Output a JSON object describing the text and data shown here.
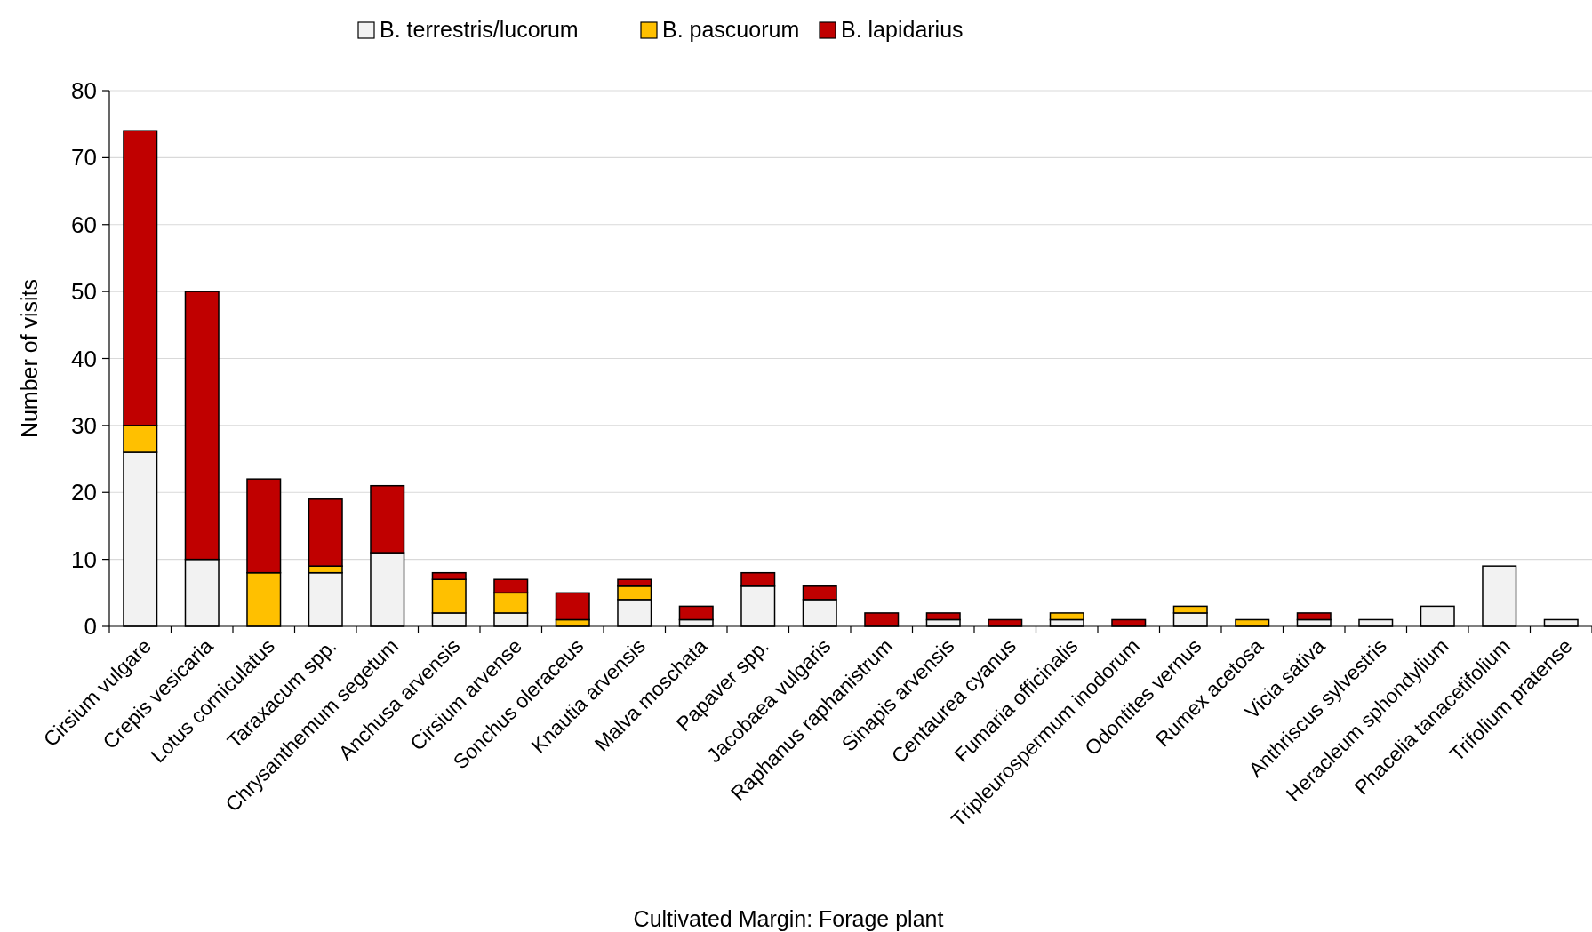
{
  "chart_data": {
    "type": "bar",
    "stacked": true,
    "xlabel": "Cultivated Margin: Forage plant",
    "ylabel": "Number of  visits",
    "categories": [
      "Cirsium vulgare",
      "Crepis vesicaria",
      "Lotus corniculatus",
      "Taraxacum spp.",
      "Chrysanthemum segetum",
      "Anchusa arvensis",
      "Cirsium arvense",
      "Sonchus oleraceus",
      "Knautia arvensis",
      "Malva moschata",
      "Papaver spp.",
      "Jacobaea vulgaris",
      "Raphanus raphanistrum",
      "Sinapis arvensis",
      "Centaurea cyanus",
      "Fumaria officinalis",
      "Tripleurospermum inodorum",
      "Odontites vernus",
      "Rumex acetosa",
      "Vicia sativa",
      "Anthriscus sylvestris",
      "Heracleum sphondylium",
      "Phacelia tanacetifolium",
      "Trifolium pratense"
    ],
    "series": [
      {
        "name": "B. terrestris/lucorum",
        "color": "#f2f2f2",
        "values": [
          26,
          10,
          0,
          8,
          11,
          2,
          2,
          0,
          4,
          1,
          6,
          4,
          0,
          1,
          0,
          1,
          0,
          2,
          0,
          1,
          1,
          3,
          9,
          1
        ]
      },
      {
        "name": "B. pascuorum",
        "color": "#ffc000",
        "values": [
          4,
          0,
          8,
          1,
          0,
          5,
          3,
          1,
          2,
          0,
          0,
          0,
          0,
          0,
          0,
          1,
          0,
          1,
          1,
          0,
          0,
          0,
          0,
          0
        ]
      },
      {
        "name": "B. lapidarius",
        "color": "#c00000",
        "values": [
          44,
          40,
          14,
          10,
          10,
          1,
          2,
          4,
          1,
          2,
          2,
          2,
          2,
          1,
          1,
          0,
          1,
          0,
          0,
          1,
          0,
          0,
          0,
          0
        ]
      }
    ],
    "ylim": [
      0,
      80
    ],
    "yticks": [
      0,
      10,
      20,
      30,
      40,
      50,
      60,
      70,
      80
    ],
    "grid": "y",
    "legend": "top"
  }
}
